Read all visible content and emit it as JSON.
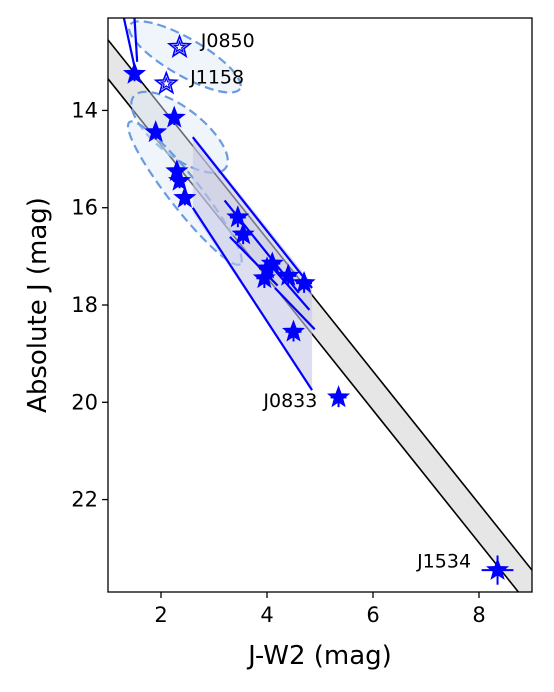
{
  "chart_data": {
    "type": "scatter",
    "xlabel": "J-W2 (mag)",
    "ylabel": "Absolute J (mag)",
    "xlim": [
      1.0,
      9.0
    ],
    "ylim": [
      23.9,
      12.1
    ],
    "y_inverted": true,
    "xticks": [
      2,
      4,
      6,
      8
    ],
    "yticks": [
      14,
      16,
      18,
      20,
      22
    ],
    "grid": false,
    "legend": "none",
    "colors": {
      "points": "#0000ff",
      "open_points": "#0000ff",
      "ellipse_dashed": "#6a9be0",
      "ellipse_fill": "#dce8f6",
      "band_fill": "#e6e6e6",
      "band_lines": "#000000",
      "shaded_region": "#c8c8e8"
    },
    "band": {
      "upper_line": [
        [
          1.0,
          12.55
        ],
        [
          9.0,
          23.45
        ]
      ],
      "lower_line": [
        [
          1.0,
          13.35
        ],
        [
          9.0,
          24.25
        ]
      ]
    },
    "filled_points": [
      {
        "x": 1.5,
        "y": 13.25,
        "xerr": 0.1,
        "yerr": 0.15
      },
      {
        "x": 1.9,
        "y": 14.45,
        "xerr": 0.1,
        "yerr": 0.15
      },
      {
        "x": 2.25,
        "y": 14.15,
        "xerr": 0.1,
        "yerr": 0.15
      },
      {
        "x": 2.3,
        "y": 15.25,
        "xerr": 0.12,
        "yerr": 0.15
      },
      {
        "x": 2.35,
        "y": 15.45,
        "xerr": 0.12,
        "yerr": 0.15
      },
      {
        "x": 2.45,
        "y": 15.8,
        "xerr": 0.1,
        "yerr": 0.15
      },
      {
        "x": 3.45,
        "y": 16.2,
        "xerr": 0.15,
        "yerr": 0.2
      },
      {
        "x": 3.55,
        "y": 16.55,
        "xerr": 0.15,
        "yerr": 0.2
      },
      {
        "x": 3.95,
        "y": 17.45,
        "xerr": 0.15,
        "yerr": 0.2
      },
      {
        "x": 4.0,
        "y": 17.25,
        "xerr": 0.15,
        "yerr": 0.2
      },
      {
        "x": 4.1,
        "y": 17.15,
        "xerr": 0.15,
        "yerr": 0.2
      },
      {
        "x": 4.4,
        "y": 17.4,
        "xerr": 0.15,
        "yerr": 0.2
      },
      {
        "x": 4.7,
        "y": 17.55,
        "xerr": 0.15,
        "yerr": 0.2
      },
      {
        "x": 4.5,
        "y": 18.55,
        "xerr": 0.15,
        "yerr": 0.2
      },
      {
        "x": 5.35,
        "y": 19.9,
        "xerr": 0.15,
        "yerr": 0.2
      },
      {
        "x": 8.35,
        "y": 23.45,
        "xerr": 0.3,
        "yerr": 0.3
      }
    ],
    "open_points": [
      {
        "x": 2.35,
        "y": 12.7
      },
      {
        "x": 2.1,
        "y": 13.45
      }
    ],
    "annotations": [
      {
        "text": "J0850",
        "x": 2.75,
        "y": 12.55,
        "anchor": "start"
      },
      {
        "text": "J1158",
        "x": 2.55,
        "y": 13.3,
        "anchor": "start"
      },
      {
        "text": "J0833",
        "x": 4.95,
        "y": 19.95,
        "anchor": "end"
      },
      {
        "text": "J1534",
        "x": 7.85,
        "y": 23.25,
        "anchor": "end"
      }
    ],
    "shaded_region": [
      [
        2.6,
        14.5
      ],
      [
        4.85,
        17.55
      ],
      [
        4.85,
        19.75
      ],
      [
        2.6,
        16.1
      ]
    ],
    "solid_segments": [
      [
        [
          1.3,
          12.1
        ],
        [
          1.5,
          13.1
        ]
      ],
      [
        [
          1.5,
          12.1
        ],
        [
          1.55,
          13.0
        ]
      ],
      [
        [
          2.6,
          14.55
        ],
        [
          4.85,
          17.65
        ]
      ],
      [
        [
          2.6,
          16.0
        ],
        [
          4.85,
          19.75
        ]
      ],
      [
        [
          3.2,
          15.85
        ],
        [
          4.6,
          17.75
        ]
      ],
      [
        [
          3.3,
          16.6
        ],
        [
          4.2,
          17.6
        ]
      ],
      [
        [
          4.0,
          17.1
        ],
        [
          4.8,
          18.1
        ]
      ],
      [
        [
          4.15,
          17.65
        ],
        [
          4.9,
          18.5
        ]
      ]
    ],
    "dashed_ellipses": [
      {
        "cx": 2.45,
        "cy": 12.9,
        "rx": 1.2,
        "ry": 0.35,
        "angle": 30
      },
      {
        "cx": 2.35,
        "cy": 14.45,
        "rx": 1.1,
        "ry": 0.45,
        "angle": 38
      },
      {
        "cx": 2.45,
        "cy": 15.7,
        "rx": 1.7,
        "ry": 0.3,
        "angle": 52
      }
    ]
  }
}
